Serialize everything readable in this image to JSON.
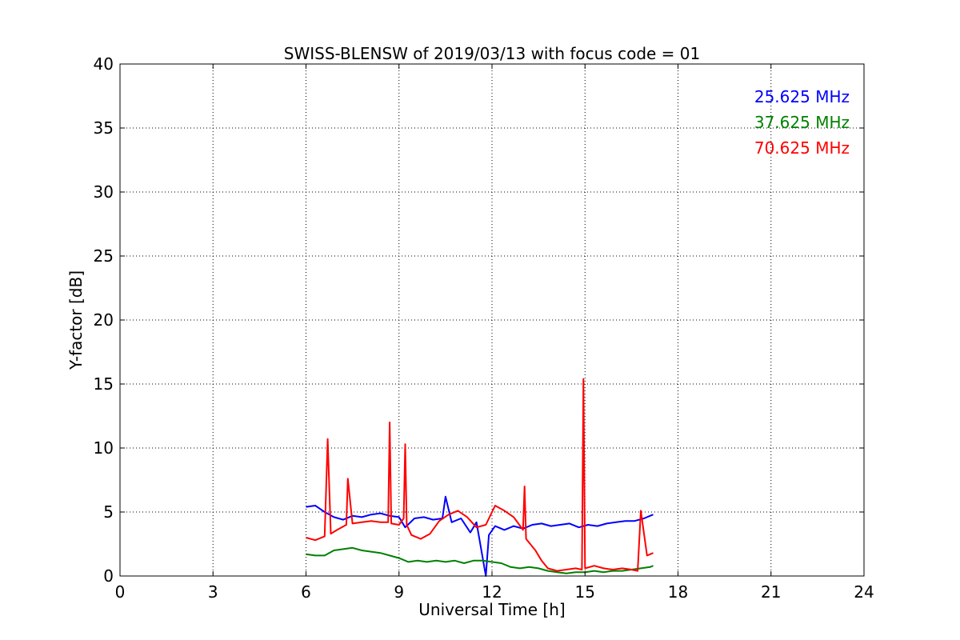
{
  "chart_data": {
    "type": "line",
    "title": "SWISS-BLENSW of 2019/03/13 with focus code = 01",
    "xlabel": "Universal Time [h]",
    "ylabel": "Y-factor [dB]",
    "xlim": [
      0,
      24
    ],
    "ylim": [
      0,
      40
    ],
    "xticks": [
      0,
      3,
      6,
      9,
      12,
      15,
      18,
      21,
      24
    ],
    "yticks": [
      0,
      5,
      10,
      15,
      20,
      25,
      30,
      35,
      40
    ],
    "grid": true,
    "legend_position": "top-right",
    "series": [
      {
        "name": "25.625 MHz",
        "color": "#0000ff",
        "x": [
          6.0,
          6.3,
          6.6,
          6.9,
          7.2,
          7.5,
          7.8,
          8.1,
          8.4,
          8.7,
          9.0,
          9.2,
          9.5,
          9.8,
          10.1,
          10.4,
          10.5,
          10.7,
          11.0,
          11.3,
          11.5,
          11.8,
          11.9,
          12.1,
          12.4,
          12.7,
          13.0,
          13.3,
          13.6,
          13.9,
          14.2,
          14.5,
          14.8,
          15.1,
          15.4,
          15.7,
          16.0,
          16.3,
          16.6,
          16.9,
          17.2
        ],
        "y": [
          5.4,
          5.5,
          5.0,
          4.6,
          4.4,
          4.7,
          4.6,
          4.8,
          4.9,
          4.7,
          4.6,
          3.8,
          4.5,
          4.6,
          4.4,
          4.5,
          6.2,
          4.2,
          4.5,
          3.4,
          4.2,
          0.0,
          3.2,
          3.9,
          3.6,
          3.9,
          3.7,
          4.0,
          4.1,
          3.9,
          4.0,
          4.1,
          3.8,
          4.0,
          3.9,
          4.1,
          4.2,
          4.3,
          4.3,
          4.5,
          4.8
        ]
      },
      {
        "name": "37.625 MHz",
        "color": "#008000",
        "x": [
          6.0,
          6.3,
          6.6,
          6.9,
          7.2,
          7.5,
          7.8,
          8.1,
          8.4,
          8.7,
          9.0,
          9.3,
          9.6,
          9.9,
          10.2,
          10.5,
          10.8,
          11.1,
          11.4,
          11.7,
          12.0,
          12.3,
          12.6,
          12.9,
          13.2,
          13.5,
          13.8,
          14.1,
          14.4,
          14.7,
          15.0,
          15.3,
          15.6,
          15.9,
          16.2,
          16.5,
          16.8,
          17.1,
          17.2
        ],
        "y": [
          1.7,
          1.6,
          1.6,
          2.0,
          2.1,
          2.2,
          2.0,
          1.9,
          1.8,
          1.6,
          1.4,
          1.1,
          1.2,
          1.1,
          1.2,
          1.1,
          1.2,
          1.0,
          1.2,
          1.2,
          1.1,
          1.0,
          0.7,
          0.6,
          0.7,
          0.6,
          0.4,
          0.3,
          0.2,
          0.3,
          0.3,
          0.4,
          0.3,
          0.4,
          0.4,
          0.5,
          0.6,
          0.7,
          0.8
        ]
      },
      {
        "name": "70.625 MHz",
        "color": "#ff0000",
        "x": [
          6.0,
          6.3,
          6.6,
          6.7,
          6.8,
          7.0,
          7.3,
          7.35,
          7.5,
          7.8,
          8.1,
          8.4,
          8.65,
          8.7,
          8.75,
          9.0,
          9.15,
          9.2,
          9.25,
          9.4,
          9.7,
          10.0,
          10.3,
          10.6,
          10.9,
          11.2,
          11.5,
          11.8,
          12.1,
          12.4,
          12.7,
          13.0,
          13.05,
          13.1,
          13.4,
          13.6,
          13.8,
          14.1,
          14.4,
          14.7,
          14.9,
          14.95,
          15.0,
          15.3,
          15.6,
          15.9,
          16.2,
          16.5,
          16.7,
          16.8,
          17.0,
          17.2
        ],
        "y": [
          3.0,
          2.8,
          3.1,
          10.7,
          3.3,
          3.6,
          4.0,
          7.6,
          4.1,
          4.2,
          4.3,
          4.2,
          4.2,
          12.0,
          4.1,
          4.0,
          4.5,
          10.3,
          4.0,
          3.2,
          2.9,
          3.3,
          4.3,
          4.8,
          5.1,
          4.6,
          3.8,
          4.0,
          5.5,
          5.1,
          4.6,
          3.6,
          7.0,
          2.9,
          2.0,
          1.2,
          0.6,
          0.4,
          0.5,
          0.6,
          0.5,
          15.4,
          0.6,
          0.8,
          0.6,
          0.5,
          0.6,
          0.5,
          0.4,
          5.1,
          1.6,
          1.8
        ]
      }
    ]
  }
}
